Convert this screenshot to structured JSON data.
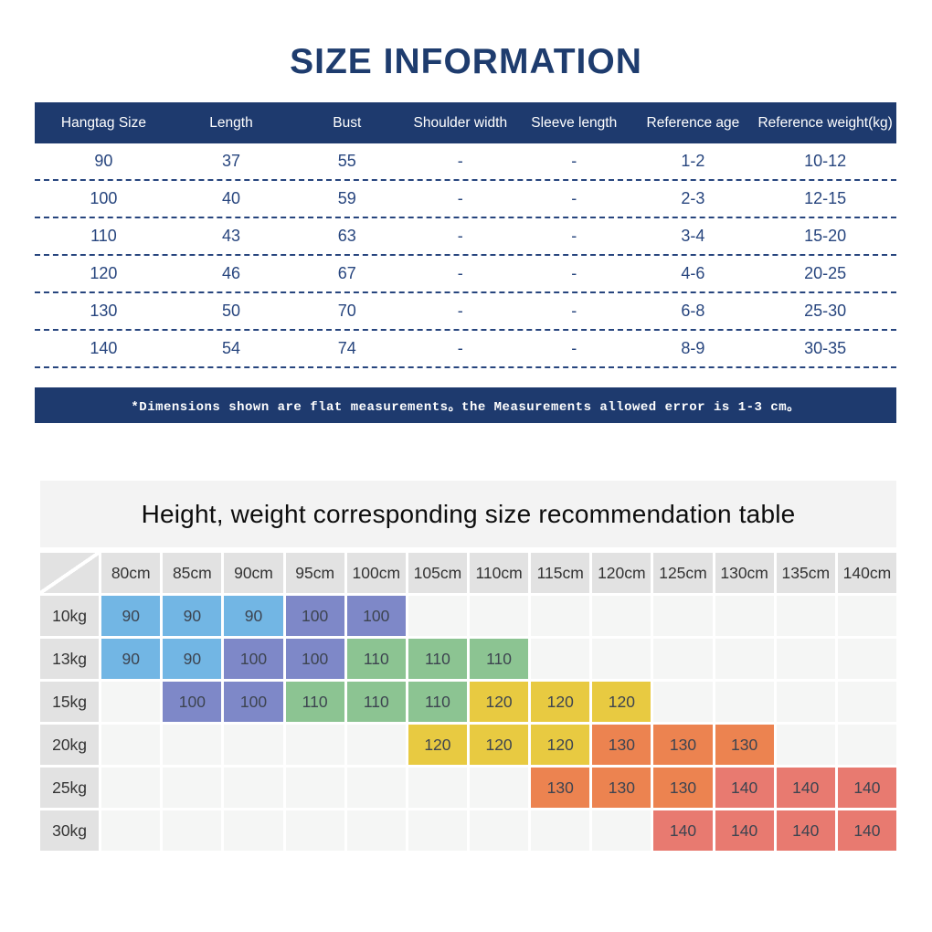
{
  "page": {
    "title": "SIZE INFORMATION",
    "note": "*Dimensions shown are flat measurements。the Measurements allowed error is 1-3 cm。"
  },
  "size_table": {
    "headers": [
      "Hangtag Size",
      "Length",
      "Bust",
      "Shoulder width",
      "Sleeve length",
      "Reference age",
      "Reference weight(kg)"
    ],
    "rows": [
      [
        "90",
        "37",
        "55",
        "-",
        "-",
        "1-2",
        "10-12"
      ],
      [
        "100",
        "40",
        "59",
        "-",
        "-",
        "2-3",
        "12-15"
      ],
      [
        "110",
        "43",
        "63",
        "-",
        "-",
        "3-4",
        "15-20"
      ],
      [
        "120",
        "46",
        "67",
        "-",
        "-",
        "4-6",
        "20-25"
      ],
      [
        "130",
        "50",
        "70",
        "-",
        "-",
        "6-8",
        "25-30"
      ],
      [
        "140",
        "54",
        "74",
        "-",
        "-",
        "8-9",
        "30-35"
      ]
    ]
  },
  "recommendation": {
    "title": "Height, weight corresponding size recommendation table",
    "height_headers": [
      "80cm",
      "85cm",
      "90cm",
      "95cm",
      "100cm",
      "105cm",
      "110cm",
      "115cm",
      "120cm",
      "125cm",
      "130cm",
      "135cm",
      "140cm"
    ],
    "weight_rows": [
      {
        "label": "10kg",
        "cells": [
          "90",
          "90",
          "90",
          "100",
          "100",
          "",
          "",
          "",
          "",
          "",
          "",
          "",
          ""
        ]
      },
      {
        "label": "13kg",
        "cells": [
          "90",
          "90",
          "100",
          "100",
          "110",
          "110",
          "110",
          "",
          "",
          "",
          "",
          "",
          ""
        ]
      },
      {
        "label": "15kg",
        "cells": [
          "",
          "100",
          "100",
          "110",
          "110",
          "110",
          "120",
          "120",
          "120",
          "",
          "",
          "",
          ""
        ]
      },
      {
        "label": "20kg",
        "cells": [
          "",
          "",
          "",
          "",
          "",
          "120",
          "120",
          "120",
          "130",
          "130",
          "130",
          "",
          ""
        ]
      },
      {
        "label": "25kg",
        "cells": [
          "",
          "",
          "",
          "",
          "",
          "",
          "",
          "130",
          "130",
          "130",
          "140",
          "140",
          "140"
        ]
      },
      {
        "label": "30kg",
        "cells": [
          "",
          "",
          "",
          "",
          "",
          "",
          "",
          "",
          "",
          "140",
          "140",
          "140",
          "140"
        ]
      }
    ],
    "size_colors": {
      "90": "#72b6e4",
      "100": "#7e88c8",
      "110": "#8cc492",
      "120": "#e8ca41",
      "130": "#ec8350",
      "140": "#e87a70"
    }
  },
  "colors": {
    "navy": "#1e3a6e",
    "title_navy": "#1e3c6e",
    "row_text": "#27457e",
    "header_gray": "#e2e2e2",
    "empty_gray": "#f5f6f5"
  },
  "chart_data": [
    {
      "type": "table",
      "title": "SIZE INFORMATION",
      "columns": [
        "Hangtag Size",
        "Length",
        "Bust",
        "Shoulder width",
        "Sleeve length",
        "Reference age",
        "Reference weight(kg)"
      ],
      "rows": [
        [
          "90",
          "37",
          "55",
          "-",
          "-",
          "1-2",
          "10-12"
        ],
        [
          "100",
          "40",
          "59",
          "-",
          "-",
          "2-3",
          "12-15"
        ],
        [
          "110",
          "43",
          "63",
          "-",
          "-",
          "3-4",
          "15-20"
        ],
        [
          "120",
          "46",
          "67",
          "-",
          "-",
          "4-6",
          "20-25"
        ],
        [
          "130",
          "50",
          "70",
          "-",
          "-",
          "6-8",
          "25-30"
        ],
        [
          "140",
          "54",
          "74",
          "-",
          "-",
          "8-9",
          "30-35"
        ]
      ],
      "footnote": "*Dimensions shown are flat measurements。the Measurements allowed error is 1-3 cm。"
    },
    {
      "type": "heatmap",
      "title": "Height, weight corresponding size recommendation table",
      "x": [
        "80cm",
        "85cm",
        "90cm",
        "95cm",
        "100cm",
        "105cm",
        "110cm",
        "115cm",
        "120cm",
        "125cm",
        "130cm",
        "135cm",
        "140cm"
      ],
      "y": [
        "10kg",
        "13kg",
        "15kg",
        "20kg",
        "25kg",
        "30kg"
      ],
      "values": [
        [
          "90",
          "90",
          "90",
          "100",
          "100",
          null,
          null,
          null,
          null,
          null,
          null,
          null,
          null
        ],
        [
          "90",
          "90",
          "100",
          "100",
          "110",
          "110",
          "110",
          null,
          null,
          null,
          null,
          null,
          null
        ],
        [
          null,
          "100",
          "100",
          "110",
          "110",
          "110",
          "120",
          "120",
          "120",
          null,
          null,
          null,
          null
        ],
        [
          null,
          null,
          null,
          null,
          null,
          "120",
          "120",
          "120",
          "130",
          "130",
          "130",
          null,
          null
        ],
        [
          null,
          null,
          null,
          null,
          null,
          null,
          null,
          "130",
          "130",
          "130",
          "140",
          "140",
          "140"
        ],
        [
          null,
          null,
          null,
          null,
          null,
          null,
          null,
          null,
          null,
          "140",
          "140",
          "140",
          "140"
        ]
      ],
      "cell_colors": {
        "90": "#72b6e4",
        "100": "#7e88c8",
        "110": "#8cc492",
        "120": "#e8ca41",
        "130": "#ec8350",
        "140": "#e87a70"
      }
    }
  ]
}
